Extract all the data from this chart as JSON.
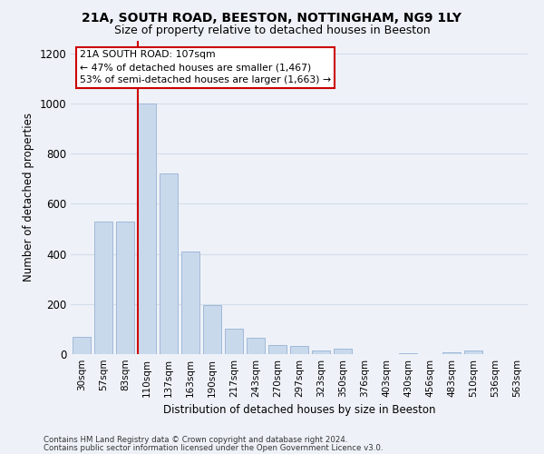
{
  "title1": "21A, SOUTH ROAD, BEESTON, NOTTINGHAM, NG9 1LY",
  "title2": "Size of property relative to detached houses in Beeston",
  "xlabel": "Distribution of detached houses by size in Beeston",
  "ylabel": "Number of detached properties",
  "categories": [
    "30sqm",
    "57sqm",
    "83sqm",
    "110sqm",
    "137sqm",
    "163sqm",
    "190sqm",
    "217sqm",
    "243sqm",
    "270sqm",
    "297sqm",
    "323sqm",
    "350sqm",
    "376sqm",
    "403sqm",
    "430sqm",
    "456sqm",
    "483sqm",
    "510sqm",
    "536sqm",
    "563sqm"
  ],
  "values": [
    70,
    530,
    530,
    1000,
    720,
    410,
    195,
    100,
    65,
    38,
    32,
    15,
    20,
    0,
    0,
    5,
    0,
    8,
    15,
    0,
    0
  ],
  "bar_color": "#c9d9ec",
  "bar_edge_color": "#a0b8d8",
  "grid_color": "#d4dde8",
  "background_color": "#eef2f8",
  "marker_line_color": "#cc0000",
  "marker_box_color": "#ffffff",
  "marker_box_edge": "#cc0000",
  "marker_label": "21A SOUTH ROAD: 107sqm",
  "marker_line1": "← 47% of detached houses are smaller (1,467)",
  "marker_line2": "53% of semi-detached houses are larger (1,663) →",
  "ylim": [
    0,
    1250
  ],
  "yticks": [
    0,
    200,
    400,
    600,
    800,
    1000,
    1200
  ],
  "marker_bin_index": 3,
  "footnote1": "Contains HM Land Registry data © Crown copyright and database right 2024.",
  "footnote2": "Contains public sector information licensed under the Open Government Licence v3.0."
}
